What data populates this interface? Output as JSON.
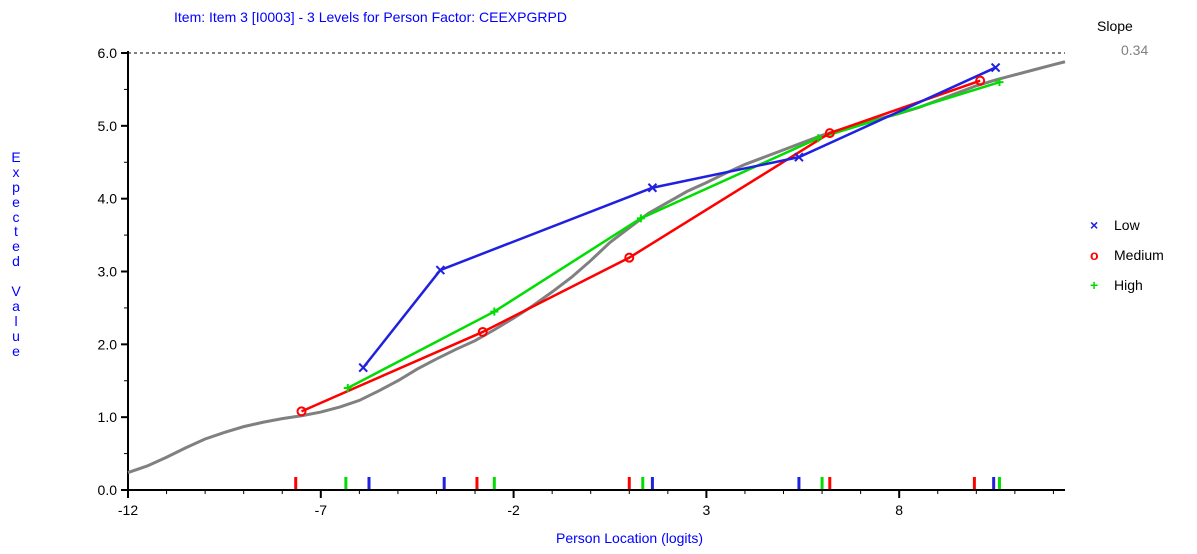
{
  "chart_data": {
    "type": "line",
    "title": "Item: Item 3 [I0003] - 3 Levels for Person Factor: CEEXPGRPD",
    "xlabel": "Person Location (logits)",
    "ylabel": "Expected Value",
    "xlim": [
      -12,
      12.3
    ],
    "ylim": [
      0,
      6
    ],
    "x_ticks": [
      -12,
      -7,
      -2,
      3,
      8
    ],
    "x_tick_labels": [
      "-12",
      "-7",
      "-2",
      "3",
      "8"
    ],
    "y_ticks": [
      0,
      1,
      2,
      3,
      4,
      5,
      6
    ],
    "y_tick_labels": [
      "0.0",
      "1.0",
      "2.0",
      "3.0",
      "4.0",
      "5.0",
      "6.0"
    ],
    "max_line": 6,
    "slope_label": "Slope",
    "slope_value": "0.34",
    "icc": {
      "name": "ICC",
      "color": "#808080",
      "x": [
        -12,
        -11.5,
        -11,
        -10.5,
        -10,
        -9.5,
        -9,
        -8.5,
        -8,
        -7.5,
        -7,
        -6.5,
        -6,
        -5.5,
        -5,
        -4.5,
        -4,
        -3.5,
        -3,
        -2.5,
        -2,
        -1.5,
        -1,
        -0.5,
        0,
        0.5,
        1,
        1.5,
        2,
        2.5,
        3,
        3.5,
        4,
        4.5,
        5,
        5.5,
        6,
        6.5,
        7,
        7.5,
        8,
        8.5,
        9,
        9.5,
        10,
        10.5,
        11,
        11.5,
        12,
        12.3
      ],
      "y": [
        0.24,
        0.33,
        0.45,
        0.58,
        0.7,
        0.79,
        0.87,
        0.93,
        0.98,
        1.02,
        1.07,
        1.14,
        1.23,
        1.36,
        1.5,
        1.66,
        1.8,
        1.93,
        2.05,
        2.2,
        2.36,
        2.53,
        2.72,
        2.92,
        3.15,
        3.4,
        3.6,
        3.8,
        3.95,
        4.1,
        4.22,
        4.35,
        4.47,
        4.57,
        4.67,
        4.77,
        4.87,
        4.95,
        5.03,
        5.1,
        5.17,
        5.25,
        5.35,
        5.45,
        5.55,
        5.63,
        5.7,
        5.77,
        5.84,
        5.88
      ]
    },
    "series": [
      {
        "name": "Low",
        "marker": "×",
        "color": "#2020e0",
        "x": [
          -5.9,
          -3.9,
          1.6,
          5.4,
          10.5
        ],
        "y": [
          1.68,
          3.02,
          4.15,
          4.57,
          5.8
        ]
      },
      {
        "name": "Medium",
        "marker": "o",
        "color": "#ff0000",
        "x": [
          -7.5,
          -2.8,
          1.0,
          6.2,
          10.1
        ],
        "y": [
          1.08,
          2.17,
          3.19,
          4.9,
          5.62
        ]
      },
      {
        "name": "High",
        "marker": "+",
        "color": "#00dd00",
        "x": [
          -6.3,
          -2.5,
          1.3,
          5.9,
          10.6
        ],
        "y": [
          1.4,
          2.45,
          3.73,
          4.83,
          5.6
        ]
      }
    ],
    "rug": [
      {
        "series": "Medium",
        "x": [
          -7.65,
          -2.95,
          1.0,
          6.2,
          9.95
        ]
      },
      {
        "series": "High",
        "x": [
          -6.35,
          -2.5,
          1.35,
          6.0,
          10.6
        ]
      },
      {
        "series": "Low",
        "x": [
          -5.75,
          -3.8,
          1.6,
          5.4,
          10.45
        ]
      }
    ],
    "legend_position": "right"
  }
}
